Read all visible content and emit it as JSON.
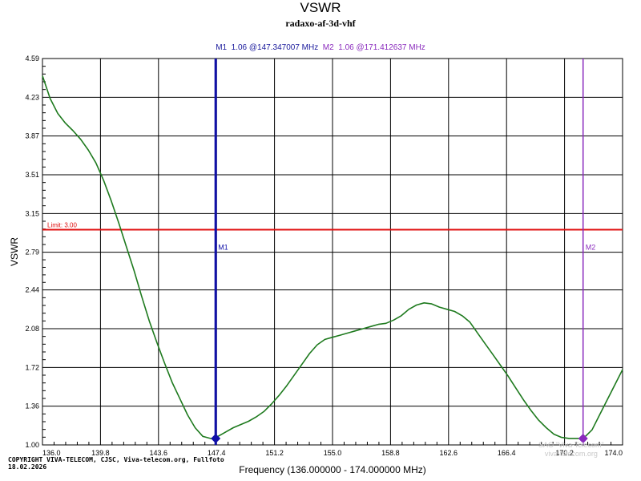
{
  "header": {
    "title": "VSWR",
    "subtitle": "radaxo-af-3d-vhf",
    "marker1_text": "M1  1.06 @147.347007 MHz",
    "marker2_text": "M2  1.06 @171.412637 MHz"
  },
  "footer": {
    "copyright_line1": "COPYRIGHT VIVA-TELECOM, CJSC, Viva-telecom.org, Fullfoto",
    "copyright_line2": "18.02.2026",
    "watermark_line1": "SAO \"Viva-Telecom\"",
    "watermark_line2": "viva-telecom.org"
  },
  "colors": {
    "curve": "#1e7a1e",
    "marker1": "#1010a8",
    "marker2": "#8a2bbd",
    "limit": "#e01010",
    "grid": "#000000"
  },
  "chart_data": {
    "type": "line",
    "title": "VSWR",
    "subtitle": "radaxo-af-3d-vhf",
    "xlabel": "Frequency (136.000000 - 174.000000 MHz)",
    "ylabel": "VSWR",
    "xlim": [
      136.0,
      174.0
    ],
    "ylim": [
      1.0,
      4.59
    ],
    "x_ticks": [
      136.0,
      139.8,
      143.6,
      147.4,
      151.2,
      155.0,
      158.8,
      162.6,
      166.4,
      170.2,
      174.0
    ],
    "x_tick_labels": [
      "136.0",
      "139.8",
      "143.6",
      "147.4",
      "151.2",
      "155.0",
      "158.8",
      "162.6",
      "166.4",
      "170.2",
      "174.0"
    ],
    "y_ticks": [
      1.0,
      1.36,
      1.72,
      2.08,
      2.44,
      2.79,
      3.15,
      3.51,
      3.87,
      4.23,
      4.59
    ],
    "y_tick_labels": [
      "1.00",
      "1.36",
      "1.72",
      "2.08",
      "2.44",
      "2.79",
      "3.15",
      "3.51",
      "3.87",
      "4.23",
      "4.59"
    ],
    "grid": true,
    "limit": {
      "value": 3.0,
      "label": "Limit: 3.00"
    },
    "markers": [
      {
        "name": "M1",
        "x": 147.347007,
        "y": 1.06
      },
      {
        "name": "M2",
        "x": 171.412637,
        "y": 1.06
      }
    ],
    "series": [
      {
        "x": [
          136.0,
          136.5,
          137.0,
          137.5,
          138.0,
          138.5,
          139.0,
          139.5,
          140.0,
          140.5,
          141.0,
          141.5,
          142.0,
          142.5,
          143.0,
          143.5,
          144.0,
          144.5,
          145.0,
          145.5,
          146.0,
          146.5,
          147.0,
          147.35,
          147.5,
          148.0,
          148.5,
          149.0,
          149.5,
          150.0,
          150.5,
          151.0,
          151.5,
          152.0,
          152.5,
          153.0,
          153.5,
          154.0,
          154.5,
          155.0,
          155.5,
          156.0,
          156.5,
          157.0,
          157.5,
          158.0,
          158.5,
          159.0,
          159.5,
          160.0,
          160.5,
          161.0,
          161.5,
          162.0,
          162.5,
          163.0,
          163.5,
          164.0,
          164.5,
          165.0,
          165.5,
          166.0,
          166.5,
          167.0,
          167.5,
          168.0,
          168.5,
          169.0,
          169.5,
          170.0,
          170.5,
          171.0,
          171.41,
          171.5,
          172.0,
          172.5,
          173.0,
          173.5,
          174.0
        ],
        "values": [
          4.43,
          4.22,
          4.08,
          3.99,
          3.92,
          3.84,
          3.74,
          3.62,
          3.46,
          3.27,
          3.06,
          2.84,
          2.62,
          2.38,
          2.15,
          1.95,
          1.76,
          1.58,
          1.43,
          1.28,
          1.16,
          1.08,
          1.06,
          1.06,
          1.08,
          1.12,
          1.16,
          1.19,
          1.22,
          1.26,
          1.31,
          1.38,
          1.46,
          1.55,
          1.65,
          1.75,
          1.85,
          1.93,
          1.98,
          2.0,
          2.02,
          2.04,
          2.06,
          2.08,
          2.1,
          2.12,
          2.13,
          2.16,
          2.2,
          2.26,
          2.3,
          2.32,
          2.31,
          2.28,
          2.26,
          2.24,
          2.2,
          2.14,
          2.04,
          1.94,
          1.84,
          1.74,
          1.64,
          1.53,
          1.42,
          1.32,
          1.23,
          1.16,
          1.1,
          1.07,
          1.06,
          1.06,
          1.06,
          1.07,
          1.14,
          1.28,
          1.42,
          1.56,
          1.7
        ]
      }
    ]
  }
}
